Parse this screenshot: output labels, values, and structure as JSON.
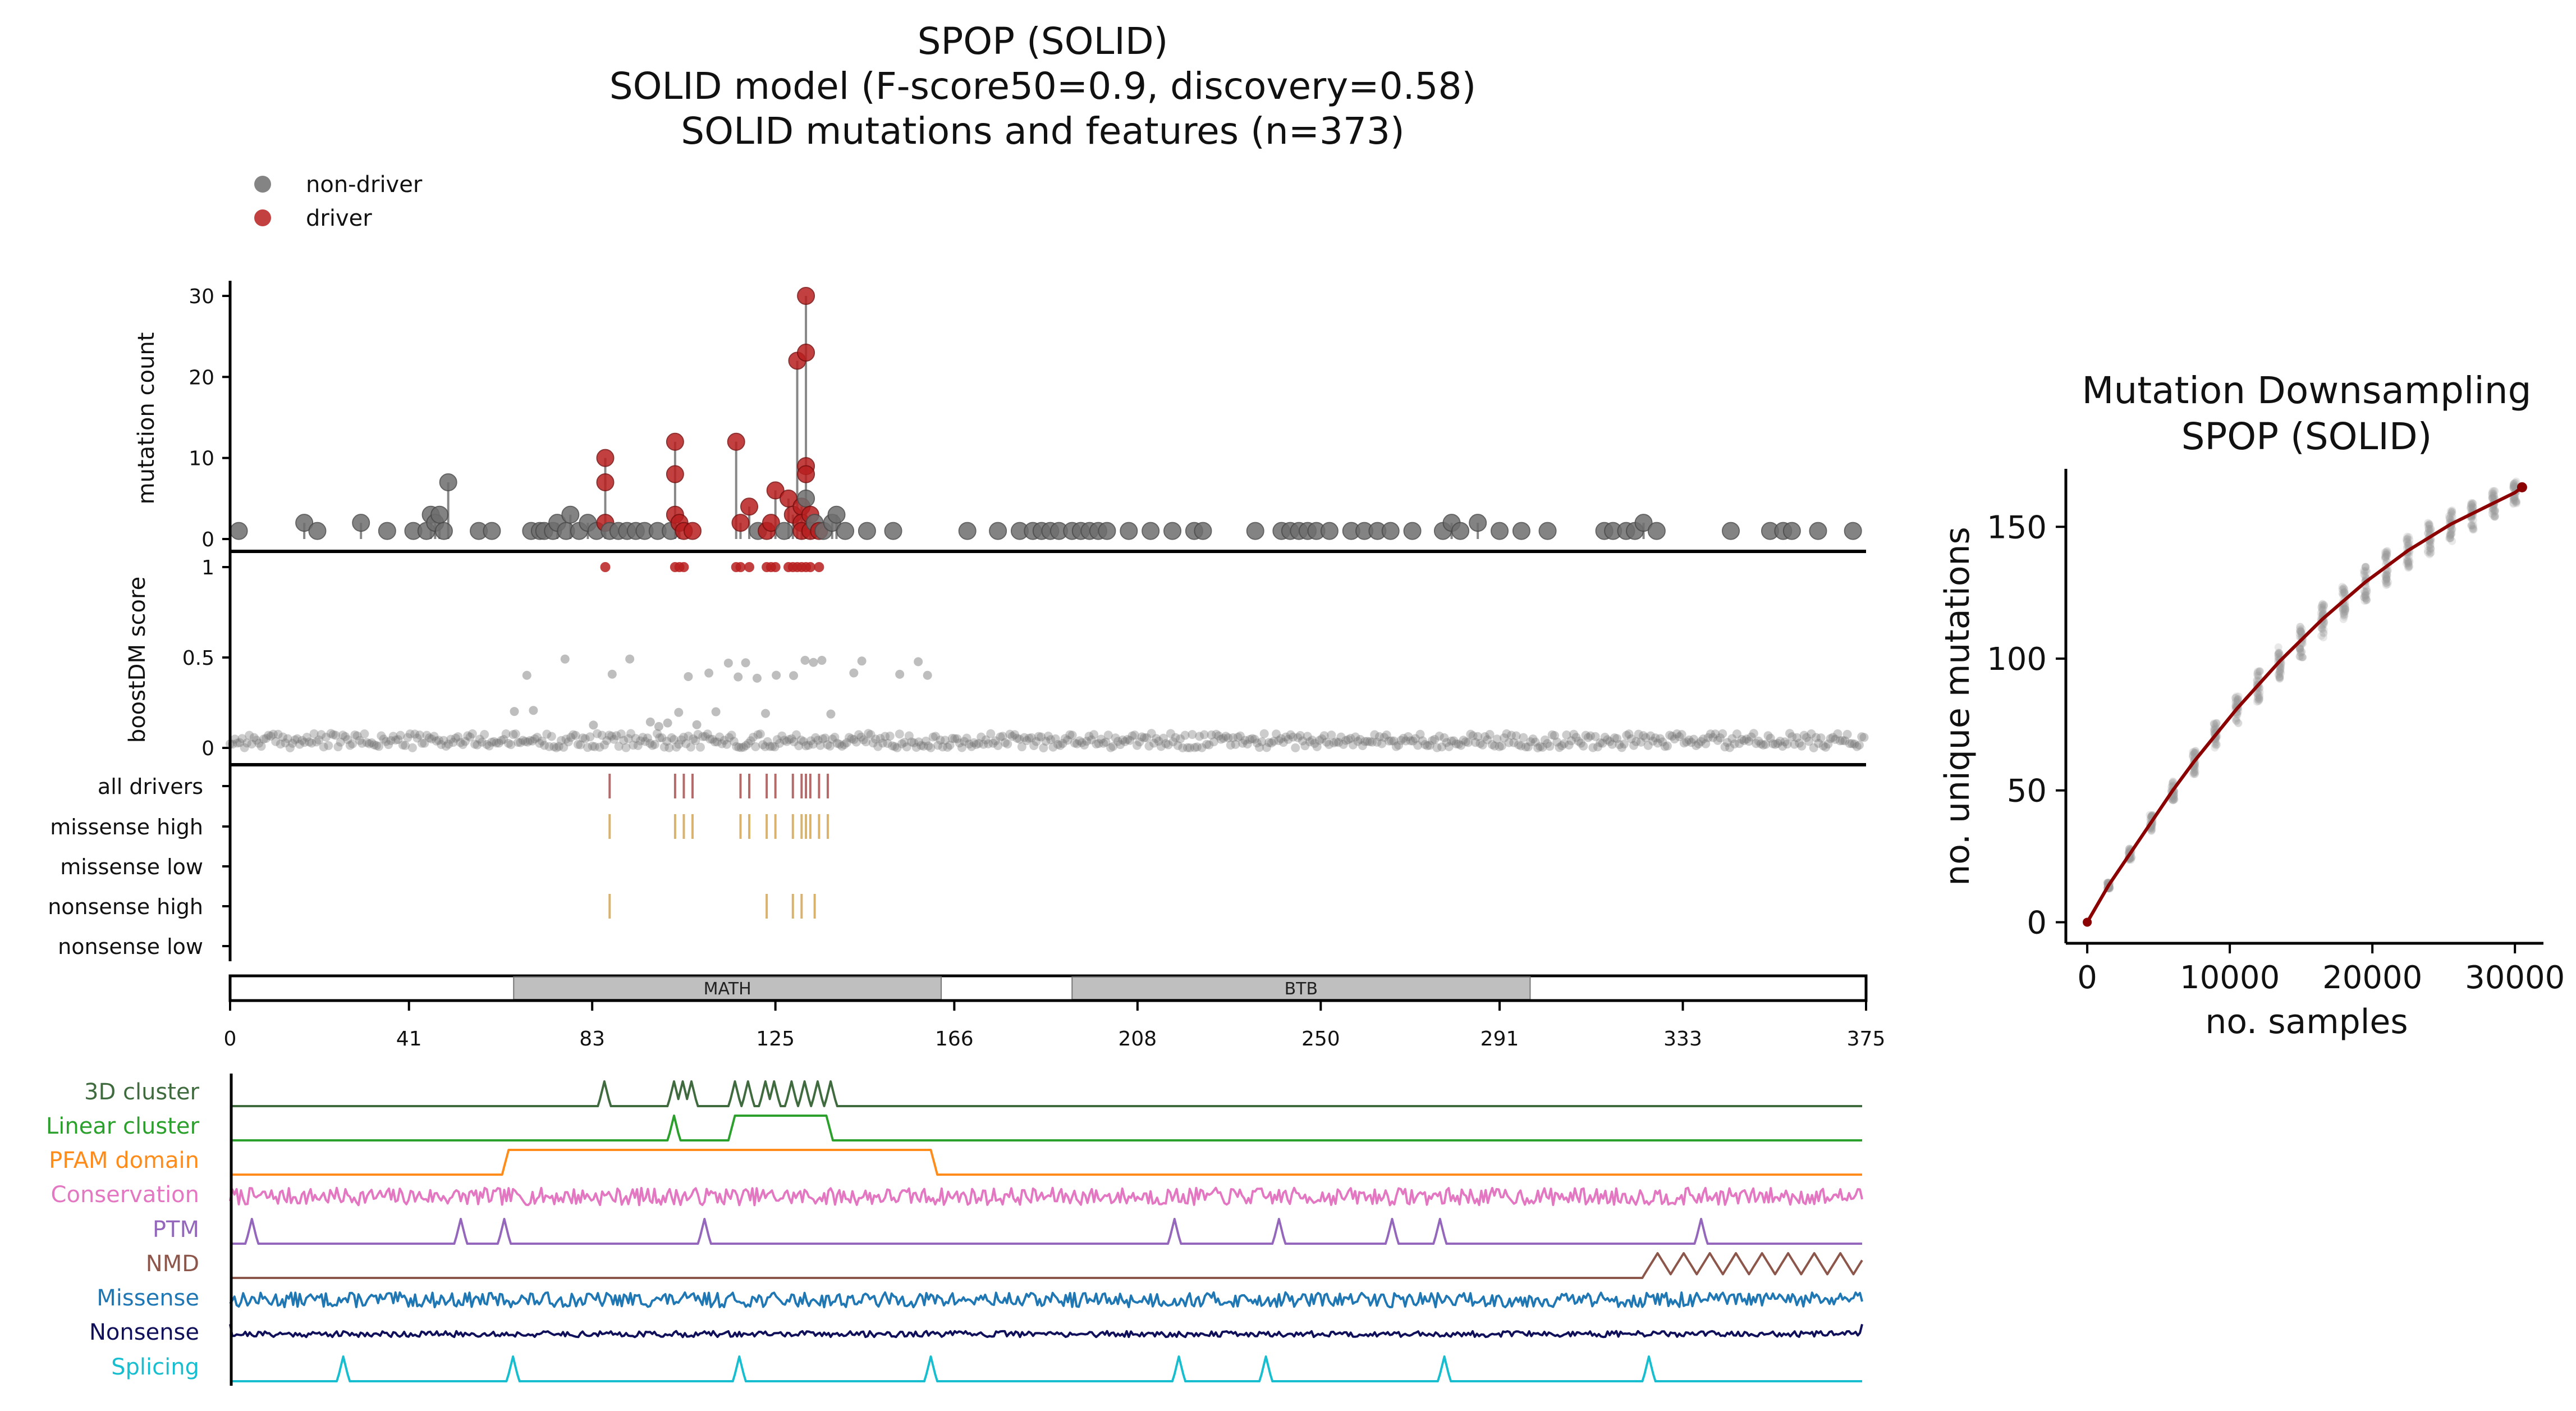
{
  "title": {
    "line1": "SPOP (SOLID)",
    "line2": "SOLID model (F-score50=0.9, discovery=0.58)",
    "line3": "SOLID mutations and features (n=373)"
  },
  "legend": {
    "placement": "top-left",
    "entries": [
      {
        "label": "non-driver",
        "color": "#6e6e6e"
      },
      {
        "label": "driver",
        "color": "#b81f1f"
      }
    ]
  },
  "colors": {
    "nondriver": "#6e6e6e",
    "driver": "#b81f1f",
    "all_drivers_tick": "#b56a6a",
    "subtype_tick": "#d9b26e",
    "domain_fill": "#bfbfbf",
    "stem": "#555555",
    "curve": "#8b0000",
    "cloud": "#9a9a9a"
  },
  "chart_data": [
    {
      "type": "scatter",
      "name": "mutation-count-lollipop",
      "ylabel": "mutation count",
      "xlim": [
        0,
        375
      ],
      "ylim": [
        0,
        32
      ],
      "yticks": [
        "0",
        "10",
        "20",
        "30"
      ],
      "ytick_values": [
        0,
        10,
        20,
        30
      ],
      "grid": false,
      "points": [
        {
          "x": 2,
          "y": 1,
          "d": 0
        },
        {
          "x": 17,
          "y": 2,
          "d": 0
        },
        {
          "x": 20,
          "y": 1,
          "d": 0
        },
        {
          "x": 30,
          "y": 2,
          "d": 0
        },
        {
          "x": 36,
          "y": 1,
          "d": 0
        },
        {
          "x": 42,
          "y": 1,
          "d": 0
        },
        {
          "x": 45,
          "y": 1,
          "d": 0
        },
        {
          "x": 46,
          "y": 3,
          "d": 0
        },
        {
          "x": 47,
          "y": 2,
          "d": 0
        },
        {
          "x": 48,
          "y": 3,
          "d": 0
        },
        {
          "x": 49,
          "y": 1,
          "d": 0
        },
        {
          "x": 50,
          "y": 7,
          "d": 0
        },
        {
          "x": 57,
          "y": 1,
          "d": 0
        },
        {
          "x": 60,
          "y": 1,
          "d": 0
        },
        {
          "x": 69,
          "y": 1,
          "d": 0
        },
        {
          "x": 71,
          "y": 1,
          "d": 0
        },
        {
          "x": 72,
          "y": 1,
          "d": 0
        },
        {
          "x": 74,
          "y": 1,
          "d": 0
        },
        {
          "x": 75,
          "y": 2,
          "d": 0
        },
        {
          "x": 77,
          "y": 1,
          "d": 0
        },
        {
          "x": 78,
          "y": 3,
          "d": 0
        },
        {
          "x": 80,
          "y": 1,
          "d": 0
        },
        {
          "x": 82,
          "y": 2,
          "d": 0
        },
        {
          "x": 84,
          "y": 1,
          "d": 0
        },
        {
          "x": 86,
          "y": 10,
          "d": 1
        },
        {
          "x": 86,
          "y": 7,
          "d": 1
        },
        {
          "x": 86,
          "y": 2,
          "d": 1
        },
        {
          "x": 87,
          "y": 1,
          "d": 0
        },
        {
          "x": 89,
          "y": 1,
          "d": 0
        },
        {
          "x": 91,
          "y": 1,
          "d": 0
        },
        {
          "x": 93,
          "y": 1,
          "d": 0
        },
        {
          "x": 95,
          "y": 1,
          "d": 0
        },
        {
          "x": 98,
          "y": 1,
          "d": 0
        },
        {
          "x": 101,
          "y": 1,
          "d": 0
        },
        {
          "x": 102,
          "y": 12,
          "d": 1
        },
        {
          "x": 102,
          "y": 8,
          "d": 1
        },
        {
          "x": 102,
          "y": 3,
          "d": 1
        },
        {
          "x": 103,
          "y": 2,
          "d": 1
        },
        {
          "x": 104,
          "y": 1,
          "d": 1
        },
        {
          "x": 106,
          "y": 1,
          "d": 1
        },
        {
          "x": 116,
          "y": 12,
          "d": 1
        },
        {
          "x": 117,
          "y": 2,
          "d": 1
        },
        {
          "x": 119,
          "y": 4,
          "d": 1
        },
        {
          "x": 121,
          "y": 1,
          "d": 0
        },
        {
          "x": 123,
          "y": 1,
          "d": 1
        },
        {
          "x": 124,
          "y": 2,
          "d": 1
        },
        {
          "x": 125,
          "y": 6,
          "d": 1
        },
        {
          "x": 127,
          "y": 1,
          "d": 0
        },
        {
          "x": 128,
          "y": 5,
          "d": 1
        },
        {
          "x": 129,
          "y": 3,
          "d": 1
        },
        {
          "x": 130,
          "y": 22,
          "d": 1
        },
        {
          "x": 131,
          "y": 4,
          "d": 1
        },
        {
          "x": 131,
          "y": 2,
          "d": 1
        },
        {
          "x": 131,
          "y": 1,
          "d": 1
        },
        {
          "x": 132,
          "y": 30,
          "d": 1
        },
        {
          "x": 132,
          "y": 23,
          "d": 1
        },
        {
          "x": 132,
          "y": 9,
          "d": 1
        },
        {
          "x": 132,
          "y": 8,
          "d": 1
        },
        {
          "x": 132,
          "y": 5,
          "d": 0
        },
        {
          "x": 133,
          "y": 3,
          "d": 1
        },
        {
          "x": 133,
          "y": 1,
          "d": 1
        },
        {
          "x": 134,
          "y": 2,
          "d": 0
        },
        {
          "x": 135,
          "y": 1,
          "d": 1
        },
        {
          "x": 136,
          "y": 1,
          "d": 0
        },
        {
          "x": 138,
          "y": 2,
          "d": 0
        },
        {
          "x": 139,
          "y": 3,
          "d": 0
        },
        {
          "x": 141,
          "y": 1,
          "d": 0
        },
        {
          "x": 146,
          "y": 1,
          "d": 0
        },
        {
          "x": 152,
          "y": 1,
          "d": 0
        },
        {
          "x": 169,
          "y": 1,
          "d": 0
        },
        {
          "x": 176,
          "y": 1,
          "d": 0
        },
        {
          "x": 181,
          "y": 1,
          "d": 0
        },
        {
          "x": 184,
          "y": 1,
          "d": 0
        },
        {
          "x": 186,
          "y": 1,
          "d": 0
        },
        {
          "x": 188,
          "y": 1,
          "d": 0
        },
        {
          "x": 190,
          "y": 1,
          "d": 0
        },
        {
          "x": 193,
          "y": 1,
          "d": 0
        },
        {
          "x": 195,
          "y": 1,
          "d": 0
        },
        {
          "x": 197,
          "y": 1,
          "d": 0
        },
        {
          "x": 199,
          "y": 1,
          "d": 0
        },
        {
          "x": 201,
          "y": 1,
          "d": 0
        },
        {
          "x": 206,
          "y": 1,
          "d": 0
        },
        {
          "x": 211,
          "y": 1,
          "d": 0
        },
        {
          "x": 216,
          "y": 1,
          "d": 0
        },
        {
          "x": 221,
          "y": 1,
          "d": 0
        },
        {
          "x": 223,
          "y": 1,
          "d": 0
        },
        {
          "x": 235,
          "y": 1,
          "d": 0
        },
        {
          "x": 241,
          "y": 1,
          "d": 0
        },
        {
          "x": 243,
          "y": 1,
          "d": 0
        },
        {
          "x": 245,
          "y": 1,
          "d": 0
        },
        {
          "x": 247,
          "y": 1,
          "d": 0
        },
        {
          "x": 249,
          "y": 1,
          "d": 0
        },
        {
          "x": 252,
          "y": 1,
          "d": 0
        },
        {
          "x": 257,
          "y": 1,
          "d": 0
        },
        {
          "x": 260,
          "y": 1,
          "d": 0
        },
        {
          "x": 263,
          "y": 1,
          "d": 0
        },
        {
          "x": 266,
          "y": 1,
          "d": 0
        },
        {
          "x": 271,
          "y": 1,
          "d": 0
        },
        {
          "x": 278,
          "y": 1,
          "d": 0
        },
        {
          "x": 280,
          "y": 2,
          "d": 0
        },
        {
          "x": 282,
          "y": 1,
          "d": 0
        },
        {
          "x": 286,
          "y": 2,
          "d": 0
        },
        {
          "x": 291,
          "y": 1,
          "d": 0
        },
        {
          "x": 296,
          "y": 1,
          "d": 0
        },
        {
          "x": 302,
          "y": 1,
          "d": 0
        },
        {
          "x": 315,
          "y": 1,
          "d": 0
        },
        {
          "x": 317,
          "y": 1,
          "d": 0
        },
        {
          "x": 320,
          "y": 1,
          "d": 0
        },
        {
          "x": 322,
          "y": 1,
          "d": 0
        },
        {
          "x": 324,
          "y": 2,
          "d": 0
        },
        {
          "x": 327,
          "y": 1,
          "d": 0
        },
        {
          "x": 344,
          "y": 1,
          "d": 0
        },
        {
          "x": 353,
          "y": 1,
          "d": 0
        },
        {
          "x": 356,
          "y": 1,
          "d": 0
        },
        {
          "x": 358,
          "y": 1,
          "d": 0
        },
        {
          "x": 364,
          "y": 1,
          "d": 0
        },
        {
          "x": 372,
          "y": 1,
          "d": 0
        }
      ]
    },
    {
      "type": "scatter",
      "name": "boostdm-score",
      "ylabel": "boostDM score",
      "xlim": [
        0,
        375
      ],
      "ylim": [
        -0.05,
        1.05
      ],
      "yticks": [
        "0",
        "0.5",
        "1"
      ],
      "ytick_values": [
        0,
        0.5,
        1
      ],
      "drivers_at_1": [
        86,
        102,
        103,
        104,
        116,
        117,
        119,
        123,
        124,
        125,
        128,
        129,
        130,
        131,
        132,
        133,
        135
      ],
      "mid_band": {
        "x_range": [
          65,
          160
        ],
        "levels": [
          0.48,
          0.4,
          0.2,
          0.13
        ]
      },
      "baseline": {
        "x_range": [
          0,
          375
        ],
        "y_range": [
          0,
          0.08
        ]
      }
    },
    {
      "type": "table",
      "name": "consequence-tracks",
      "rows": [
        "all drivers",
        "missense high",
        "missense low",
        "nonsense high",
        "nonsense low"
      ],
      "ticks": {
        "all drivers": [
          87,
          102,
          104,
          106,
          117,
          119,
          123,
          125,
          129,
          131,
          132,
          133,
          135,
          137
        ],
        "missense high": [
          87,
          102,
          104,
          106,
          117,
          119,
          123,
          125,
          129,
          131,
          132,
          133,
          135,
          137
        ],
        "missense low": [],
        "nonsense high": [
          87,
          123,
          129,
          131,
          134
        ],
        "nonsense low": []
      }
    },
    {
      "type": "bar",
      "name": "protein-domains",
      "domains": [
        {
          "label": "MATH",
          "start": 65,
          "end": 163
        },
        {
          "label": "BTB",
          "start": 193,
          "end": 298
        }
      ],
      "xlim": [
        0,
        375
      ],
      "xticks": [
        "0",
        "41",
        "83",
        "125",
        "166",
        "208",
        "250",
        "291",
        "333",
        "375"
      ],
      "xtick_values": [
        0,
        41,
        83,
        125,
        166,
        208,
        250,
        291,
        333,
        375
      ]
    },
    {
      "type": "line",
      "name": "feature-tracks",
      "xlim": [
        0,
        375
      ],
      "series": [
        {
          "name": "3D cluster",
          "color": "#3f6b3f",
          "kind": "peaks",
          "peaks": [
            86,
            102,
            104,
            106,
            116,
            119,
            123,
            125,
            129,
            132,
            135,
            138
          ]
        },
        {
          "name": "Linear cluster",
          "color": "#2ca02c",
          "kind": "plateaus",
          "peaks": [
            102
          ],
          "plateaus": [
            [
              116,
              137
            ]
          ]
        },
        {
          "name": "PFAM domain",
          "color": "#ff8c1a",
          "kind": "plateaus",
          "peaks": [],
          "plateaus": [
            [
              64,
              161
            ]
          ]
        },
        {
          "name": "Conservation",
          "color": "#e377c2",
          "kind": "noise",
          "amplitude": 0.35,
          "seed": 7
        },
        {
          "name": "PTM",
          "color": "#9467bd",
          "kind": "peaks",
          "peaks": [
            5,
            53,
            63,
            109,
            217,
            241,
            267,
            278,
            338
          ]
        },
        {
          "name": "NMD",
          "color": "#8c564b",
          "kind": "nmd",
          "start": 325
        },
        {
          "name": "Missense",
          "color": "#1f77b4",
          "kind": "noise",
          "amplitude": 0.3,
          "seed": 13
        },
        {
          "name": "Nonsense",
          "color": "#10105a",
          "kind": "noise",
          "amplitude": 0.12,
          "seed": 21
        },
        {
          "name": "Splicing",
          "color": "#17becf",
          "kind": "peaks",
          "peaks": [
            26,
            65,
            117,
            161,
            218,
            238,
            279,
            326
          ]
        }
      ]
    },
    {
      "type": "line",
      "name": "mutation-downsampling",
      "title_line1": "Mutation Downsampling",
      "title_line2": "SPOP (SOLID)",
      "xlabel": "no. samples",
      "ylabel": "no. unique mutations",
      "xlim": [
        -1500,
        32000
      ],
      "ylim": [
        -8,
        172
      ],
      "xticks": [
        "0",
        "10000",
        "20000",
        "30000"
      ],
      "xtick_values": [
        0,
        10000,
        20000,
        30000
      ],
      "yticks": [
        "0",
        "50",
        "100",
        "150"
      ],
      "ytick_values": [
        0,
        50,
        100,
        150
      ],
      "curve": {
        "x": [
          0,
          1500,
          3000,
          4500,
          6000,
          7500,
          9000,
          10500,
          12000,
          13500,
          15000,
          16500,
          18000,
          19500,
          21000,
          22500,
          24000,
          25500,
          27000,
          28500,
          30000,
          30500
        ],
        "y": [
          0,
          14,
          26,
          38,
          50,
          61,
          71,
          81,
          90,
          99,
          107,
          115,
          122,
          129,
          135,
          141,
          146,
          151,
          155,
          159,
          163,
          165
        ]
      },
      "spread": 0.09
    }
  ]
}
